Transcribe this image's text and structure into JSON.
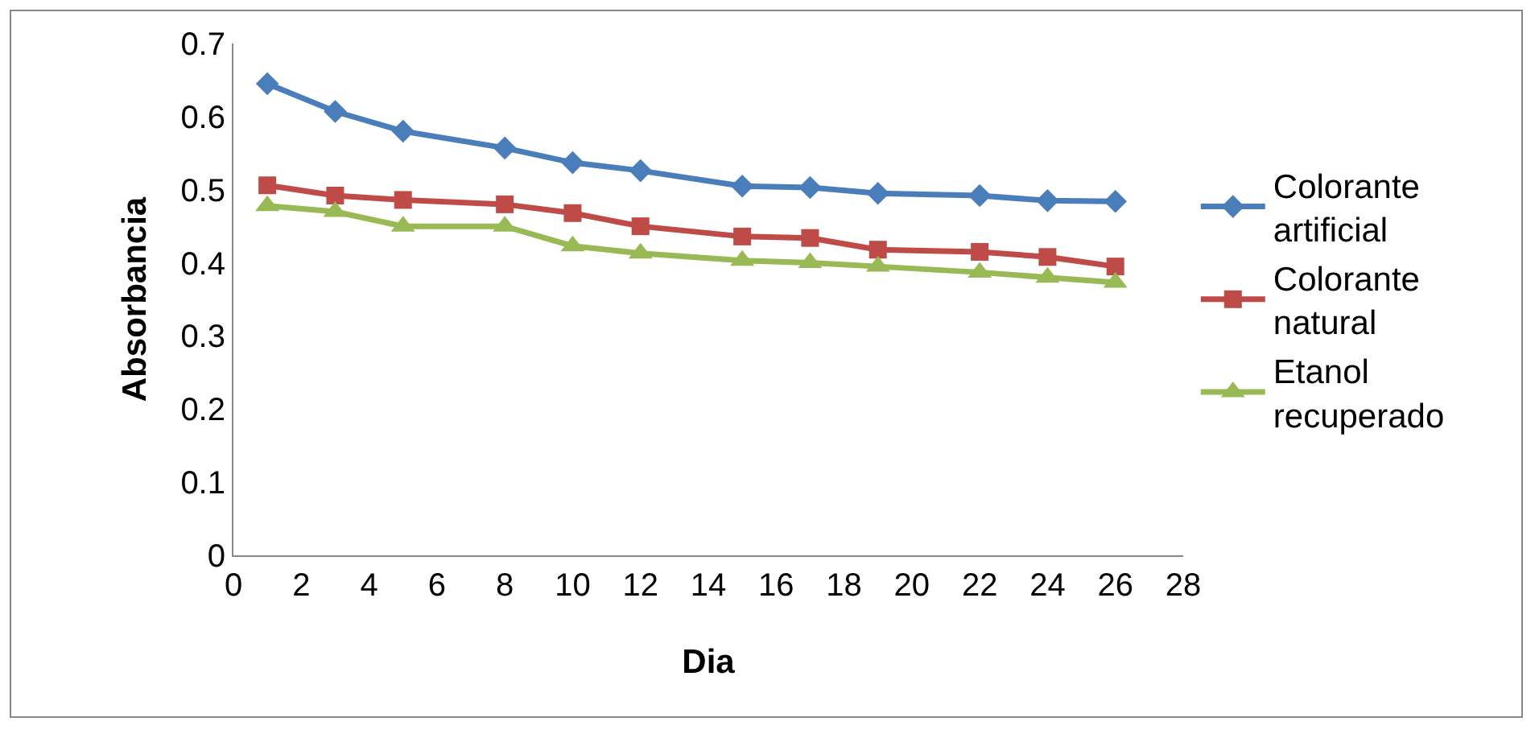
{
  "chart_data": {
    "type": "line",
    "xlabel": "Dia",
    "ylabel": "Absorbancia",
    "x": [
      1,
      3,
      5,
      8,
      10,
      12,
      15,
      17,
      19,
      22,
      24,
      26
    ],
    "series": [
      {
        "name": "Colorante artificial",
        "color": "#4a7ebb",
        "marker": "diamond",
        "values": [
          0.645,
          0.607,
          0.58,
          0.557,
          0.537,
          0.526,
          0.505,
          0.503,
          0.495,
          0.492,
          0.485,
          0.484
        ]
      },
      {
        "name": "Colorante natural",
        "color": "#be4b48",
        "marker": "square",
        "values": [
          0.506,
          0.492,
          0.486,
          0.48,
          0.468,
          0.45,
          0.436,
          0.434,
          0.418,
          0.415,
          0.408,
          0.395
        ]
      },
      {
        "name": "Etanol recuperado",
        "color": "#98b954",
        "marker": "triangle",
        "values": [
          0.478,
          0.47,
          0.45,
          0.45,
          0.423,
          0.413,
          0.403,
          0.4,
          0.395,
          0.387,
          0.38,
          0.373
        ]
      }
    ],
    "xlim": [
      0,
      28
    ],
    "xticks": [
      0,
      2,
      4,
      6,
      8,
      10,
      12,
      14,
      16,
      18,
      20,
      22,
      24,
      26,
      28
    ],
    "ylim": [
      0,
      0.7
    ],
    "yticks": [
      0,
      0.1,
      0.2,
      0.3,
      0.4,
      0.5,
      0.6,
      0.7
    ],
    "grid": false,
    "legend": "right",
    "line_style": "solid"
  }
}
